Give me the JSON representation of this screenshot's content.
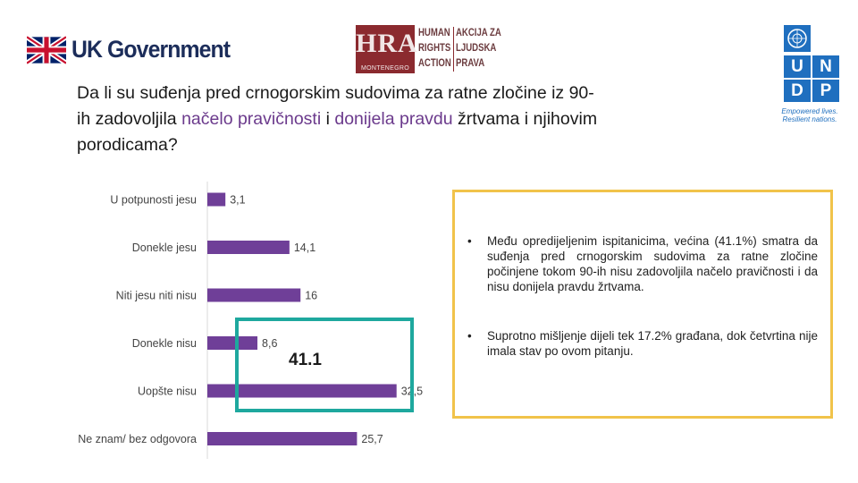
{
  "logos": {
    "uk": {
      "text": "UK Government"
    },
    "hra": {
      "letters": "HRA",
      "sub": "MONTENEGRO",
      "col1": [
        "HUMAN",
        "RIGHTS",
        "ACTION"
      ],
      "col2": [
        "AKCIJA ZA",
        "LJUDSKA",
        "PRAVA"
      ]
    },
    "undp": {
      "cells": [
        "U",
        "N",
        "D",
        "P"
      ],
      "tagline_1": "Empowered lives.",
      "tagline_2": "Resilient nations."
    }
  },
  "title": {
    "part1": "Da li su suđenja pred crnogorskim sudovima za ratne zločine iz 90-ih zadovoljila ",
    "accent1": "načelo pravičnosti",
    "part2": " i ",
    "accent2": "donijela pravdu",
    "part3": " žrtvama i njihovim porodicama?"
  },
  "chart_data": {
    "type": "bar",
    "orientation": "horizontal",
    "categories": [
      "U potpunosti jesu",
      "Donekle jesu",
      "Niti jesu niti nisu",
      "Donekle nisu",
      "Uopšte nisu",
      "Ne znam/ bez odgovora"
    ],
    "values": [
      3.1,
      14.1,
      16,
      8.6,
      32.5,
      25.7
    ],
    "data_labels": [
      "3,1",
      "14,1",
      "16",
      "8,6",
      "32,5",
      "25,7"
    ],
    "bar_color": "#6f3f98",
    "xlim": [
      0,
      35
    ],
    "grid": false
  },
  "highlight": {
    "value": "41.1",
    "border_color": "#1ea89e"
  },
  "bullets": [
    "Među opredijeljenim ispitanicima, većina (41.1%) smatra da suđenja pred crnogorskim sudovima za ratne zločine počinjene tokom 90-ih nisu zadovoljila načelo pravičnosti i da nisu donijela pravdu žrtvama.",
    "Suprotno mišljenje dijeli tek 17.2% građana, dok četvrtina nije imala stav po ovom pitanju."
  ],
  "bullet_marker": "•"
}
